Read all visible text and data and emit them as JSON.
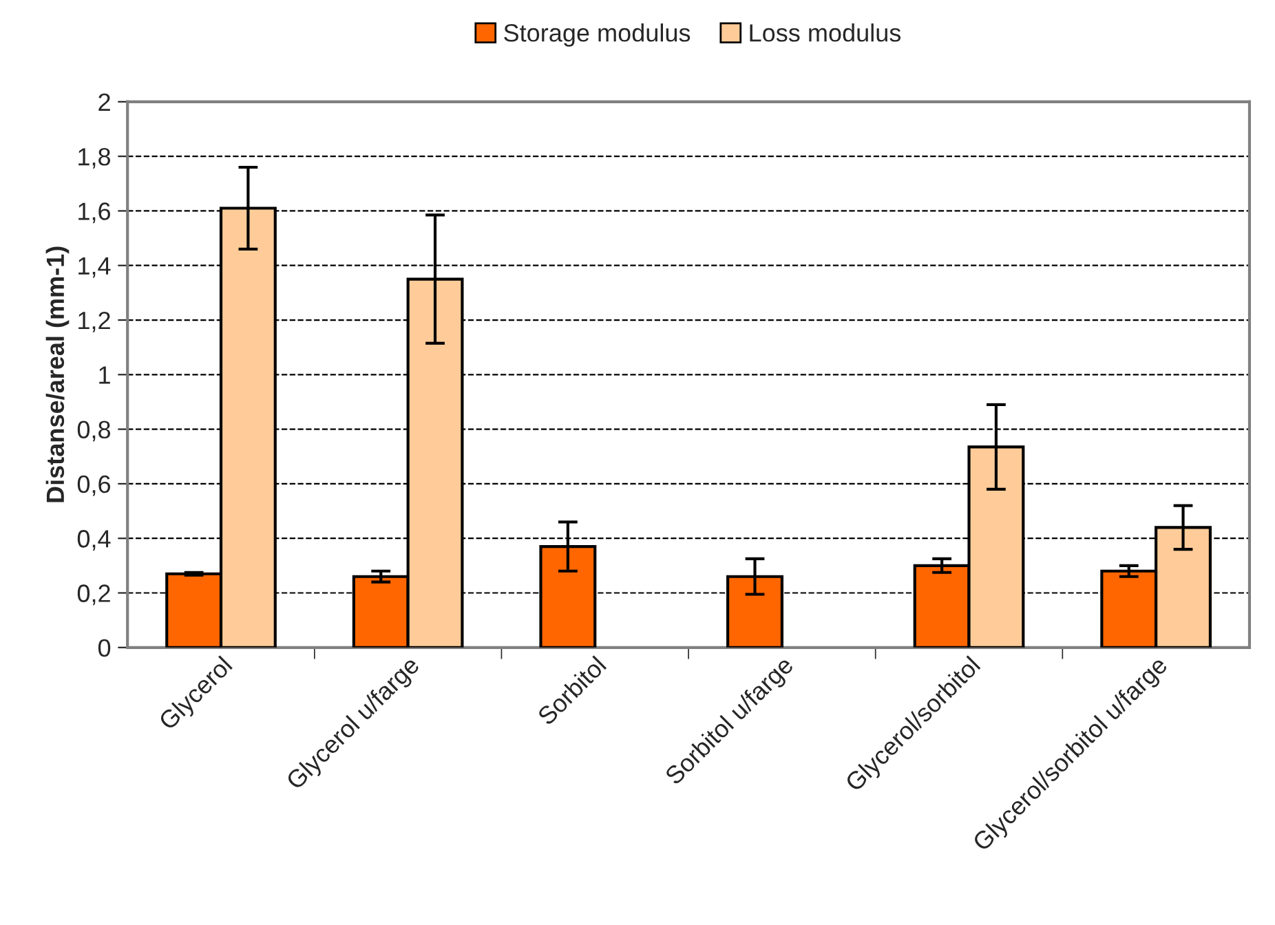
{
  "chart_data": {
    "type": "bar",
    "ylabel": "Distanse/areal (mm-1)",
    "categories": [
      "Glycerol",
      "Glycerol u/farge",
      "Sorbitol",
      "Sorbitol u/farge",
      "Glycerol/sorbitol",
      "Glycerol/sorbitol u/farge"
    ],
    "series": [
      {
        "name": "Storage modulus",
        "color": "#ff6600",
        "values": [
          0.27,
          0.26,
          0.37,
          0.26,
          0.3,
          0.28
        ],
        "errors": [
          0.005,
          0.02,
          0.09,
          0.065,
          0.025,
          0.02
        ]
      },
      {
        "name": "Loss modulus",
        "color": "#ffcc99",
        "values": [
          1.61,
          1.35,
          null,
          null,
          0.735,
          0.44
        ],
        "errors": [
          0.15,
          0.235,
          null,
          null,
          0.155,
          0.08
        ]
      }
    ],
    "ylim": [
      0,
      2
    ],
    "yticks": [
      0,
      {
        "value": 0.2,
        "label": "0,2"
      },
      {
        "value": 0.4,
        "label": "0,4"
      },
      {
        "value": 0.6,
        "label": "0,6"
      },
      {
        "value": 0.8,
        "label": "0,8"
      },
      1,
      {
        "value": 1.2,
        "label": "1,2"
      },
      {
        "value": 1.4,
        "label": "1,4"
      },
      {
        "value": 1.6,
        "label": "1,6"
      },
      {
        "value": 1.8,
        "label": "1,8"
      },
      2
    ],
    "grid": "y",
    "legend": "top",
    "line_style": "dashed"
  }
}
